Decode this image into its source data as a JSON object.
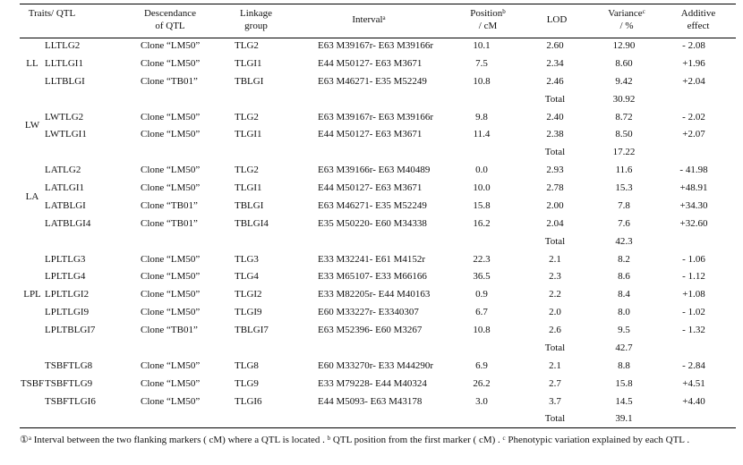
{
  "header": {
    "trait": "Traits/ QTL",
    "descendance": {
      "line1": "Descendance",
      "line2": "of QTL"
    },
    "linkage": {
      "line1": "Linkage",
      "line2": "group"
    },
    "interval": {
      "text": "Interval",
      "sup": "a"
    },
    "position": {
      "text": "Position",
      "sup": "b",
      "unit": "/ cM"
    },
    "lod": "LOD",
    "variance": {
      "text": "Variance",
      "sup": "c",
      "unit": "/ %"
    },
    "additive": {
      "line1": "Additive",
      "line2": "effect"
    }
  },
  "groups": [
    {
      "trait": "LL",
      "rows": [
        [
          "LLTLG2",
          "Clone “LM50”",
          "TLG2",
          "E63 M39167r- E63 M39166r",
          "10.1",
          "2.60",
          "12.90",
          "- 2.08"
        ],
        [
          "LLTLGI1",
          "Clone “LM50”",
          "TLGI1",
          "E44 M50127- E63 M3671",
          "7.5",
          "2.34",
          "8.60",
          "+1.96"
        ],
        [
          "LLTBLGI",
          "Clone “TB01”",
          "TBLGI",
          "E63 M46271- E35 M52249",
          "10.8",
          "2.46",
          "9.42",
          "+2.04"
        ]
      ],
      "total_label": "Total",
      "total": "30.92"
    },
    {
      "trait": "LW",
      "rows": [
        [
          "LWTLG2",
          "Clone “LM50”",
          "TLG2",
          "E63 M39167r- E63 M39166r",
          "9.8",
          "2.40",
          "8.72",
          "- 2.02"
        ],
        [
          "LWTLGI1",
          "Clone “LM50”",
          "TLGI1",
          "E44 M50127- E63 M3671",
          "11.4",
          "2.38",
          "8.50",
          "+2.07"
        ]
      ],
      "total_label": "Total",
      "total": "17.22"
    },
    {
      "trait": "LA",
      "rows": [
        [
          "LATLG2",
          "Clone “LM50”",
          "TLG2",
          "E63 M39166r- E63 M40489",
          "0.0",
          "2.93",
          "11.6",
          "- 41.98"
        ],
        [
          "LATLGI1",
          "Clone “LM50”",
          "TLGI1",
          "E44 M50127- E63 M3671",
          "10.0",
          "2.78",
          "15.3",
          "+48.91"
        ],
        [
          "LATBLGI",
          "Clone “TB01”",
          "TBLGI",
          "E63 M46271- E35 M52249",
          "15.8",
          "2.00",
          "7.8",
          "+34.30"
        ],
        [
          "LATBLGI4",
          "Clone “TB01”",
          "TBLGI4",
          "E35 M50220- E60 M34338",
          "16.2",
          "2.04",
          "7.6",
          "+32.60"
        ]
      ],
      "total_label": "Total",
      "total": "42.3"
    },
    {
      "trait": "LPL",
      "rows": [
        [
          "LPLTLG3",
          "Clone “LM50”",
          "TLG3",
          "E33 M32241- E61 M4152r",
          "22.3",
          "2.1",
          "8.2",
          "- 1.06"
        ],
        [
          "LPLTLG4",
          "Clone “LM50”",
          "TLG4",
          "E33 M65107- E33 M66166",
          "36.5",
          "2.3",
          "8.6",
          "- 1.12"
        ],
        [
          "LPLTLGI2",
          "Clone “LM50”",
          "TLGI2",
          "E33 M82205r- E44 M40163",
          "0.9",
          "2.2",
          "8.4",
          "+1.08"
        ],
        [
          "LPLTLGI9",
          "Clone “LM50”",
          "TLGI9",
          "E60 M33227r- E3340307",
          "6.7",
          "2.0",
          "8.0",
          "- 1.02"
        ],
        [
          "LPLTBLGI7",
          "Clone “TB01”",
          "TBLGI7",
          "E63 M52396- E60 M3267",
          "10.8",
          "2.6",
          "9.5",
          "- 1.32"
        ]
      ],
      "total_label": "Total",
      "total": "42.7"
    },
    {
      "trait": "TSBF",
      "rows": [
        [
          "TSBFTLG8",
          "Clone “LM50”",
          "TLG8",
          "E60 M33270r- E33 M44290r",
          "6.9",
          "2.1",
          "8.8",
          "- 2.84"
        ],
        [
          "TSBFTLG9",
          "Clone “LM50”",
          "TLG9",
          "E33 M79228- E44 M40324",
          "26.2",
          "2.7",
          "15.8",
          "+4.51"
        ],
        [
          "TSBFTLGI6",
          "Clone “LM50”",
          "TLGI6",
          "E44 M5093- E63 M43178",
          "3.0",
          "3.7",
          "14.5",
          "+4.40"
        ]
      ],
      "total_label": "Total",
      "total": "39.1"
    }
  ],
  "footnote": [
    {
      "text": "①"
    },
    {
      "sup": "a"
    },
    {
      "text": " Interval between the two flanking markers ( cM) where a QTL is located . "
    },
    {
      "sup": "b"
    },
    {
      "text": " QTL position from the first marker ( cM) . "
    },
    {
      "sup": "c"
    },
    {
      "text": " Phenotypic variation explained by each QTL ."
    }
  ]
}
